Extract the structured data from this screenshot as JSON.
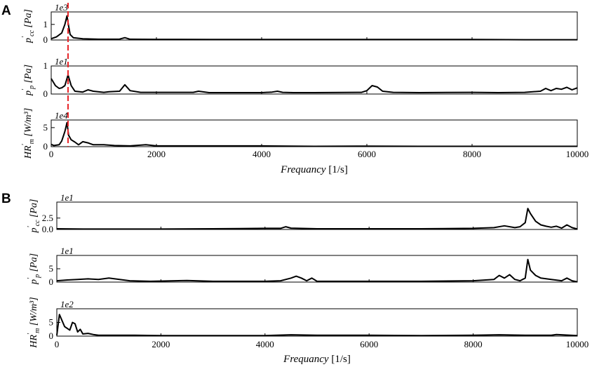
{
  "figure": {
    "panel_a_label": "A",
    "panel_b_label": "B"
  },
  "chart_data": [
    {
      "panel": "A",
      "type": "line",
      "x_range": [
        0,
        10000
      ],
      "xlabel": "Frequancy",
      "xunit": "[1/s]",
      "x_ticks": [
        0,
        2000,
        4000,
        6000,
        8000,
        10000
      ],
      "marker_x": 320,
      "marker_color": "#e8262a",
      "subplots": [
        {
          "ylabel": "p'cc [Pa]",
          "multiplier": "1e3",
          "ylim": [
            0,
            1.8
          ],
          "y_ticks": [
            0,
            1
          ],
          "x": [
            0,
            100,
            200,
            260,
            300,
            330,
            360,
            420,
            600,
            900,
            1300,
            1400,
            1500,
            2000,
            3000,
            4000,
            5000,
            6000,
            7000,
            8000,
            9000,
            10000
          ],
          "y": [
            0.08,
            0.2,
            0.45,
            1.0,
            1.55,
            0.9,
            0.35,
            0.15,
            0.08,
            0.05,
            0.06,
            0.15,
            0.05,
            0.04,
            0.03,
            0.03,
            0.03,
            0.03,
            0.03,
            0.03,
            0.02,
            0.02
          ]
        },
        {
          "ylabel": "p'p [Pa]",
          "multiplier": "1e1",
          "ylim": [
            0,
            1.0
          ],
          "y_ticks": [
            0,
            1
          ],
          "x": [
            0,
            80,
            150,
            200,
            260,
            320,
            380,
            450,
            600,
            700,
            800,
            1000,
            1100,
            1300,
            1400,
            1500,
            1700,
            2000,
            2700,
            2800,
            3000,
            4000,
            4200,
            4300,
            4400,
            4600,
            5000,
            5900,
            6000,
            6100,
            6200,
            6300,
            6500,
            7000,
            8000,
            8500,
            9000,
            9300,
            9400,
            9500,
            9600,
            9700,
            9800,
            9900,
            10000
          ],
          "y": [
            0.55,
            0.3,
            0.2,
            0.22,
            0.3,
            0.68,
            0.3,
            0.1,
            0.07,
            0.15,
            0.1,
            0.06,
            0.08,
            0.1,
            0.33,
            0.12,
            0.06,
            0.06,
            0.06,
            0.1,
            0.05,
            0.05,
            0.07,
            0.1,
            0.06,
            0.05,
            0.05,
            0.06,
            0.12,
            0.3,
            0.25,
            0.1,
            0.06,
            0.05,
            0.06,
            0.05,
            0.06,
            0.1,
            0.2,
            0.12,
            0.2,
            0.17,
            0.24,
            0.15,
            0.22
          ]
        },
        {
          "ylabel": "HR'm [W/m³]",
          "multiplier": "1e4",
          "ylim": [
            0,
            7
          ],
          "y_ticks": [
            0,
            5
          ],
          "x": [
            0,
            50,
            150,
            200,
            260,
            300,
            330,
            380,
            450,
            520,
            600,
            700,
            800,
            1000,
            1200,
            1500,
            1800,
            2000,
            3000,
            4000,
            5000,
            6000,
            7000,
            8000,
            9000,
            10000
          ],
          "y": [
            0.6,
            0.3,
            0.5,
            1.5,
            4.0,
            6.3,
            3.0,
            1.8,
            1.2,
            0.5,
            1.3,
            1.0,
            0.5,
            0.5,
            0.3,
            0.2,
            0.5,
            0.2,
            0.2,
            0.2,
            0.1,
            0.15,
            0.1,
            0.1,
            0.1,
            0.1
          ]
        }
      ]
    },
    {
      "panel": "B",
      "type": "line",
      "x_range": [
        0,
        10000
      ],
      "xlabel": "Frequancy",
      "xunit": "[1/s]",
      "x_ticks": [
        0,
        2000,
        4000,
        6000,
        8000,
        10000
      ],
      "subplots": [
        {
          "ylabel": "p'cc [Pa]",
          "multiplier": "1e1",
          "ylim": [
            0,
            6.0
          ],
          "y_ticks": [
            0.0,
            2.5
          ],
          "x": [
            0,
            500,
            1000,
            2000,
            3000,
            3500,
            4000,
            4300,
            4400,
            4500,
            5000,
            6000,
            7000,
            8000,
            8400,
            8600,
            8800,
            8900,
            9000,
            9050,
            9100,
            9200,
            9300,
            9400,
            9500,
            9600,
            9700,
            9800,
            9900,
            10000
          ],
          "y": [
            0.15,
            0.1,
            0.1,
            0.1,
            0.15,
            0.2,
            0.25,
            0.25,
            0.6,
            0.3,
            0.15,
            0.15,
            0.15,
            0.25,
            0.4,
            0.8,
            0.4,
            0.6,
            1.5,
            4.6,
            3.5,
            1.8,
            1.0,
            0.7,
            0.5,
            0.7,
            0.3,
            1.0,
            0.4,
            0.1
          ]
        },
        {
          "ylabel": "p'p [Pa]",
          "multiplier": "1e1",
          "ylim": [
            0,
            10
          ],
          "y_ticks": [
            0,
            5
          ],
          "x": [
            0,
            200,
            400,
            600,
            800,
            1000,
            1400,
            1800,
            2500,
            3000,
            4000,
            4300,
            4500,
            4600,
            4700,
            4800,
            4900,
            5000,
            6000,
            7000,
            8000,
            8400,
            8500,
            8600,
            8700,
            8800,
            8900,
            9000,
            9050,
            9100,
            9200,
            9300,
            9500,
            9700,
            9800,
            9900,
            10000
          ],
          "y": [
            0.5,
            0.8,
            1.0,
            1.2,
            1.0,
            1.5,
            0.5,
            0.3,
            0.6,
            0.3,
            0.3,
            0.5,
            1.5,
            2.2,
            1.5,
            0.5,
            1.5,
            0.3,
            0.3,
            0.3,
            0.5,
            1.0,
            2.5,
            1.5,
            2.8,
            1.0,
            0.5,
            1.5,
            8.5,
            4.5,
            2.5,
            1.5,
            1.0,
            0.5,
            1.5,
            0.5,
            0.1
          ]
        },
        {
          "ylabel": "HR'm [W/m³]",
          "multiplier": "1e2",
          "ylim": [
            0,
            10
          ],
          "y_ticks": [
            0,
            5
          ],
          "x": [
            0,
            50,
            150,
            250,
            300,
            350,
            400,
            450,
            500,
            600,
            700,
            800,
            1000,
            1500,
            2000,
            3000,
            4000,
            4500,
            5000,
            6000,
            7000,
            8000,
            8500,
            9000,
            9500,
            9600,
            10000
          ],
          "y": [
            0.3,
            7.9,
            3.5,
            2.2,
            5.0,
            4.5,
            1.5,
            2.5,
            0.8,
            1.0,
            0.6,
            0.3,
            0.3,
            0.3,
            0.2,
            0.2,
            0.2,
            0.5,
            0.3,
            0.3,
            0.2,
            0.3,
            0.5,
            0.3,
            0.3,
            0.6,
            0.2
          ]
        }
      ]
    }
  ]
}
